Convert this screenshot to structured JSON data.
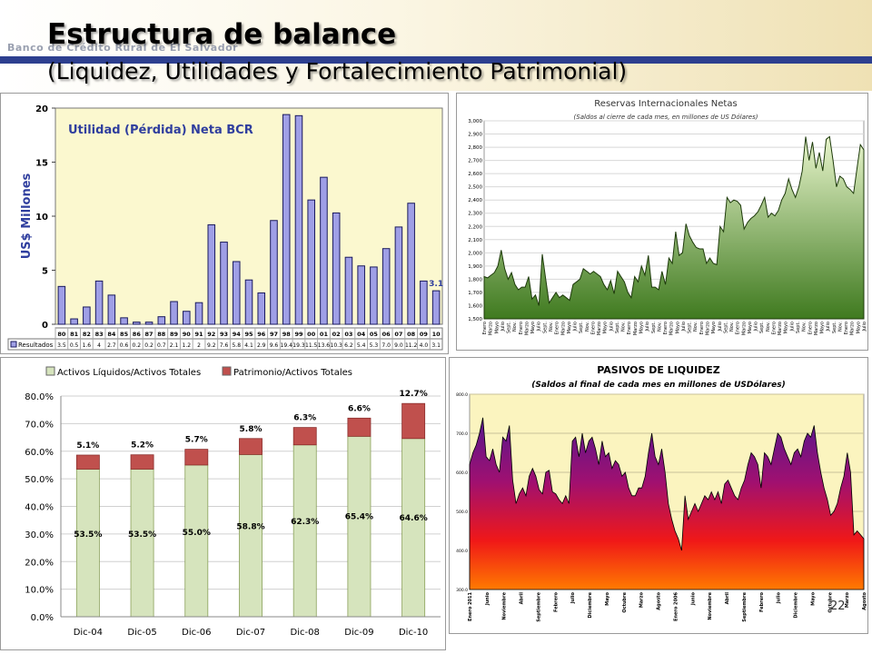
{
  "header": {
    "bank_name": "Banco de Crédito Rural de El Salvador",
    "title": "Estructura de balance",
    "subtitle": "(Liquidez, Utilidades y Fortalecimiento Patrimonial)"
  },
  "page_number": "22",
  "colors": {
    "header_rule": "#2d3f8f",
    "bar_blue": "#9f9fe6",
    "green_fill": "#5f9a3a",
    "stack_green": "#d6e4bd",
    "stack_red": "#c0504d"
  },
  "chart_data": [
    {
      "id": "utilidad",
      "type": "bar",
      "title": "Utilidad (Pérdida) Neta BCR",
      "ylabel": "US$ Millones",
      "ylim": [
        0,
        20
      ],
      "yticks": [
        0,
        5,
        10,
        15,
        20
      ],
      "categories": [
        "80",
        "81",
        "82",
        "83",
        "84",
        "85",
        "86",
        "87",
        "88",
        "89",
        "90",
        "91",
        "92",
        "93",
        "94",
        "95",
        "96",
        "97",
        "98",
        "99",
        "00",
        "01",
        "02",
        "03",
        "04",
        "05",
        "06",
        "07",
        "08",
        "09",
        "10"
      ],
      "series": [
        {
          "name": "Resultados",
          "values": [
            3.5,
            0.5,
            1.6,
            4,
            2.7,
            0.6,
            0.2,
            0.2,
            0.7,
            2.1,
            1.2,
            2,
            9.2,
            7.6,
            5.8,
            4.1,
            2.9,
            9.6,
            19.4,
            19.3,
            11.5,
            13.6,
            10.3,
            6.2,
            5.4,
            5.3,
            7.0,
            9.0,
            11.2,
            4.0,
            3.1
          ],
          "table_values": [
            "3.5",
            "0.5",
            "1.6",
            "4",
            "2.7",
            "0.6",
            "0.2",
            "0.2",
            "0.7",
            "2.1",
            "1.2",
            "2",
            "9.2",
            "7.6",
            "5.8",
            "4.1",
            "2.9",
            "9.6",
            "19.4",
            "19.3",
            "11.5",
            "13.6",
            "10.3",
            "6.2",
            "5.4",
            "5.3",
            "7.0",
            "9.0",
            "11.2",
            "4.0",
            "3.1"
          ]
        }
      ],
      "annotation": "3.1"
    },
    {
      "id": "reservas",
      "type": "area",
      "title": "Reservas Internacionales Netas",
      "subtitle": "(Saldos al cierre de cada mes, en millones de US Dólares)",
      "ylim": [
        1500,
        3000
      ],
      "yticks": [
        "1,500",
        "1,600",
        "1,700",
        "1,800",
        "1,900",
        "2,000",
        "2,100",
        "2,200",
        "2,300",
        "2,400",
        "2,500",
        "2,600",
        "2,700",
        "2,800",
        "2,900",
        "3,000"
      ],
      "xtick_labels": [
        "Enero",
        "Marzo",
        "Mayo",
        "Julio",
        "Sept.",
        "Nov.",
        "Enero",
        "Marzo",
        "Mayo",
        "Julio",
        "Sept.",
        "Nov.",
        "Enero",
        "Marzo",
        "Mayo",
        "Julio",
        "Sept.",
        "Nov.",
        "Enero",
        "Marzo",
        "Mayo",
        "Julio",
        "Sept.",
        "Nov.",
        "Enero",
        "Marzo",
        "Mayo",
        "Julio",
        "Sept.",
        "Nov.",
        "Enero",
        "Marzo",
        "Mayo",
        "Julio",
        "Sept.",
        "Nov.",
        "Enero",
        "Marzo",
        "Mayo",
        "Julio",
        "Sept.",
        "Nov.",
        "Enero",
        "Marzo",
        "Mayo",
        "Julio",
        "Sept.",
        "Nov.",
        "Enero",
        "Marzo",
        "Mayo",
        "Julio",
        "Sept.",
        "Nov.",
        "Enero",
        "Marzo",
        "Mayo",
        "Julio",
        "Sept.",
        "Nov.",
        "Enero",
        "Marzo",
        "Mayo",
        "Julio"
      ],
      "values": [
        1820,
        1810,
        1830,
        1850,
        1900,
        2020,
        1880,
        1800,
        1850,
        1760,
        1720,
        1740,
        1740,
        1820,
        1650,
        1680,
        1600,
        1990,
        1800,
        1620,
        1660,
        1700,
        1660,
        1680,
        1660,
        1640,
        1760,
        1780,
        1800,
        1880,
        1860,
        1840,
        1860,
        1840,
        1820,
        1760,
        1720,
        1790,
        1690,
        1860,
        1820,
        1780,
        1700,
        1660,
        1820,
        1780,
        1900,
        1830,
        1980,
        1740,
        1740,
        1720,
        1860,
        1760,
        1960,
        1920,
        2160,
        1980,
        2000,
        2220,
        2130,
        2080,
        2040,
        2030,
        2030,
        1920,
        1960,
        1920,
        1910,
        2200,
        2160,
        2420,
        2380,
        2400,
        2390,
        2360,
        2180,
        2230,
        2260,
        2280,
        2310,
        2360,
        2420,
        2270,
        2300,
        2280,
        2320,
        2400,
        2450,
        2560,
        2480,
        2420,
        2500,
        2620,
        2880,
        2700,
        2840,
        2640,
        2760,
        2620,
        2860,
        2880,
        2700,
        2500,
        2580,
        2560,
        2500,
        2480,
        2450,
        2640,
        2820,
        2780
      ]
    },
    {
      "id": "activos",
      "type": "bar",
      "stacked": true,
      "categories": [
        "Dic-04",
        "Dic-05",
        "Dic-06",
        "Dic-07",
        "Dic-08",
        "Dic-09",
        "Dic-10"
      ],
      "ylim": [
        0,
        80
      ],
      "yticks": [
        "0.0%",
        "10.0%",
        "20.0%",
        "30.0%",
        "40.0%",
        "50.0%",
        "60.0%",
        "70.0%",
        "80.0%"
      ],
      "series": [
        {
          "name": "Activos Líquidos/Activos Totales",
          "values": [
            53.5,
            53.5,
            55.0,
            58.8,
            62.3,
            65.4,
            64.6
          ],
          "labels": [
            "53.5%",
            "53.5%",
            "55.0%",
            "58.8%",
            "62.3%",
            "65.4%",
            "64.6%"
          ]
        },
        {
          "name": "Patrimonio/Activos Totales",
          "values": [
            5.1,
            5.2,
            5.7,
            5.8,
            6.3,
            6.6,
            12.7
          ],
          "labels": [
            "5.1%",
            "5.2%",
            "5.7%",
            "5.8%",
            "6.3%",
            "6.6%",
            "12.7%"
          ]
        }
      ]
    },
    {
      "id": "pasivos",
      "type": "area",
      "title": "PASIVOS DE LIQUIDEZ",
      "subtitle": "(Saldos al final de cada mes en millones de USDólares)",
      "ylim": [
        300,
        800
      ],
      "yticks": [
        "300.0",
        "400.0",
        "500.0",
        "600.0",
        "700.0",
        "800.0"
      ],
      "xtick_labels": [
        "Enero 2011",
        "Junio",
        "Noviembre",
        "Abril",
        "Septiembre",
        "Febrero",
        "Julio",
        "Diciembre",
        "Mayo",
        "Octubre",
        "Marzo",
        "Agosto",
        "Enero 2006",
        "Junio",
        "Noviembre",
        "Abril",
        "Septiembre",
        "Febrero",
        "Julio",
        "Diciembre",
        "Mayo",
        "Octubre",
        "Marzo",
        "Agosto"
      ],
      "values": [
        620,
        650,
        670,
        700,
        740,
        640,
        630,
        660,
        620,
        600,
        690,
        680,
        720,
        580,
        520,
        545,
        560,
        540,
        590,
        610,
        590,
        555,
        545,
        600,
        605,
        550,
        545,
        530,
        520,
        540,
        520,
        680,
        690,
        640,
        700,
        650,
        680,
        690,
        660,
        620,
        680,
        640,
        650,
        610,
        630,
        620,
        590,
        600,
        560,
        540,
        540,
        560,
        560,
        590,
        650,
        700,
        640,
        620,
        660,
        600,
        520,
        480,
        450,
        430,
        400,
        540,
        480,
        500,
        520,
        500,
        520,
        540,
        530,
        550,
        530,
        550,
        520,
        570,
        580,
        560,
        540,
        530,
        560,
        580,
        620,
        650,
        640,
        620,
        560,
        650,
        640,
        620,
        660,
        700,
        690,
        660,
        640,
        620,
        650,
        660,
        640,
        680,
        700,
        690,
        720,
        650,
        600,
        560,
        530,
        490,
        500,
        520,
        560,
        590,
        650,
        600,
        440,
        450,
        440,
        430
      ]
    }
  ]
}
